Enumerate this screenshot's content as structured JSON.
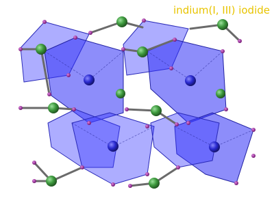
{
  "title": "indium(I, III) iodide"
}
